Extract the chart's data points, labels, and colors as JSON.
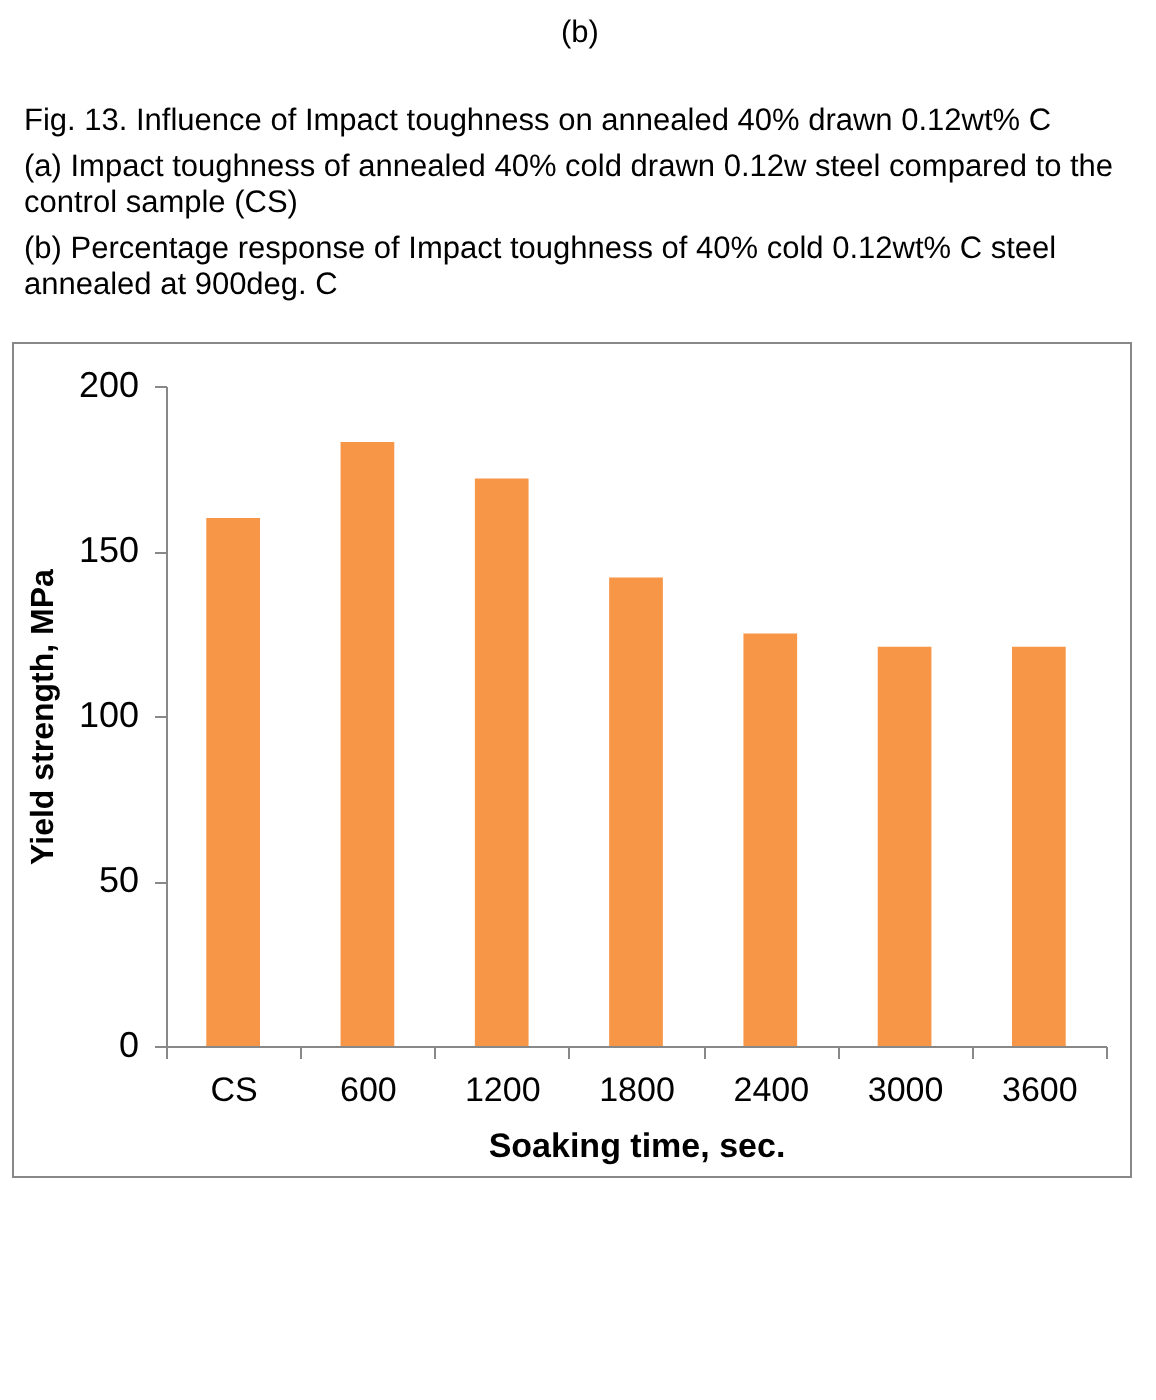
{
  "chart_data": {
    "type": "bar",
    "annotations": [
      "(b)",
      "Fig. 13. Influence of Impact toughness on annealed 40% drawn 0.12wt% C",
      "(a) Impact toughness of annealed 40% cold drawn 0.12w steel compared to the control sample (CS)",
      "(b) Percentage response of Impact toughness of 40% cold 0.12wt% C steel annealed at 900deg. C"
    ],
    "xlabel": "Soaking time, sec.",
    "ylabel": "Yield strength, MPa",
    "categories": [
      "CS",
      "600",
      "1200",
      "1800",
      "2400",
      "3000",
      "3600"
    ],
    "values": [
      160,
      183,
      172,
      142,
      125,
      121,
      121
    ],
    "color": "#f79646",
    "ylim": [
      0,
      200
    ],
    "yticks": [
      0,
      50,
      100,
      150,
      200
    ]
  }
}
